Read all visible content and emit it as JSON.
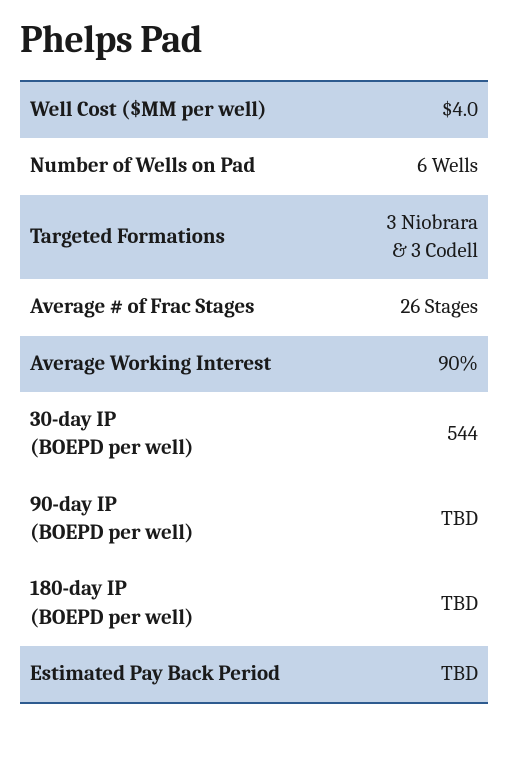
{
  "title": "Phelps Pad",
  "colors": {
    "border": "#2e5b8f",
    "shaded": "#c4d4e8",
    "text": "#1a1a1a",
    "background": "#ffffff"
  },
  "rows": [
    {
      "label": "Well Cost ($MM per well)",
      "value": "$4.0",
      "shaded": true
    },
    {
      "label": "Number of Wells on Pad",
      "value": "6 Wells",
      "shaded": false
    },
    {
      "label": "Targeted Formations",
      "value": "3 Niobrara\n& 3 Codell",
      "shaded": true
    },
    {
      "label": "Average # of Frac Stages",
      "value": "26 Stages",
      "shaded": false
    },
    {
      "label": "Average Working Interest",
      "value": "90%",
      "shaded": true
    },
    {
      "label": "30-day IP\n(BOEPD per well)",
      "value": "544",
      "shaded": false
    },
    {
      "label": "90-day IP\n(BOEPD per well)",
      "value": "TBD",
      "shaded": false
    },
    {
      "label": "180-day IP\n(BOEPD per well)",
      "value": "TBD",
      "shaded": false
    },
    {
      "label": "Estimated Pay Back Period",
      "value": "TBD",
      "shaded": true
    }
  ]
}
